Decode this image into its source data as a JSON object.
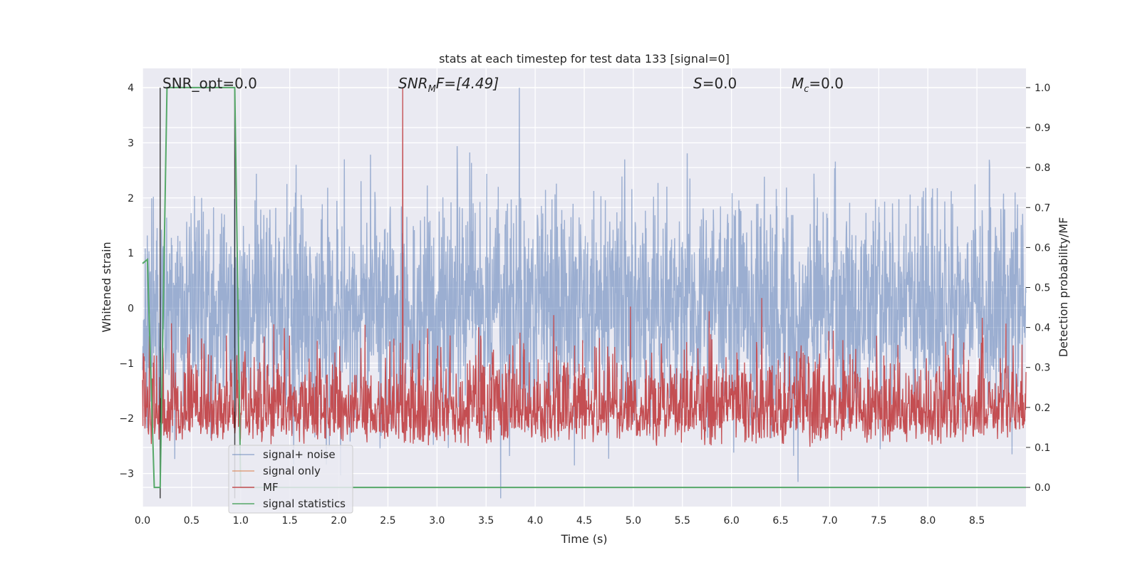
{
  "chart_data": {
    "type": "line",
    "title": "stats at each timestep for test data 133 [signal=0]",
    "xlabel": "Time (s)",
    "ylabel": "Whitened strain",
    "y2label": "Detection probability/MF",
    "xlim": [
      0.0,
      9.0
    ],
    "ylim": [
      -3.6,
      4.35
    ],
    "y2lim": [
      -0.048,
      1.048
    ],
    "x_ticks": [
      "0.0",
      "0.5",
      "1.0",
      "1.5",
      "2.0",
      "2.5",
      "3.0",
      "3.5",
      "4.0",
      "4.5",
      "5.0",
      "5.5",
      "6.0",
      "6.5",
      "7.0",
      "7.5",
      "8.0",
      "8.5"
    ],
    "y_ticks": [
      "4",
      "3",
      "2",
      "1",
      "0",
      "−1",
      "−2",
      "−3"
    ],
    "y2_ticks": [
      "1.0",
      "0.9",
      "0.8",
      "0.7",
      "0.6",
      "0.5",
      "0.4",
      "0.3",
      "0.2",
      "0.1",
      "0.0"
    ],
    "grid": true,
    "legend_position": "lower-left",
    "annotations": {
      "snr_opt": "SNR_opt=0.0",
      "snr_mf_main": "SNR",
      "snr_mf_sub": "M",
      "snr_mf_rest": "F=[4.49]",
      "s_main": "S",
      "s_rest": "=0.0",
      "mc_main": "M",
      "mc_sub": "c",
      "mc_rest": "=0.0"
    },
    "series": [
      {
        "name": "signal+ noise",
        "color": "#4c72b0",
        "alpha": 0.5,
        "summary": {
          "typical_amplitude_y": 1.6,
          "peak_max_y": 4.0,
          "peak_max_x": 3.84,
          "peak_min_y": -3.45,
          "peak_min_x": 3.65
        }
      },
      {
        "name": "signal only",
        "color": "#dd8452",
        "values": []
      },
      {
        "name": "MF",
        "color": "#c44e52",
        "summary": {
          "baseline_y": 0.1,
          "typical_top_y": 0.45,
          "peak_max_y": 1.0,
          "peak_max_x": 2.65
        }
      },
      {
        "name": "signal statistics",
        "color": "#55a868",
        "axis": "right",
        "x": [
          0.0,
          0.05,
          0.12,
          0.18,
          0.25,
          0.94,
          1.0,
          9.0
        ],
        "y": [
          0.56,
          0.57,
          0.0,
          0.0,
          1.0,
          1.0,
          0.0,
          0.0
        ]
      }
    ],
    "vertical_markers": {
      "color": "#000000",
      "x": [
        0.18,
        0.94
      ]
    }
  }
}
